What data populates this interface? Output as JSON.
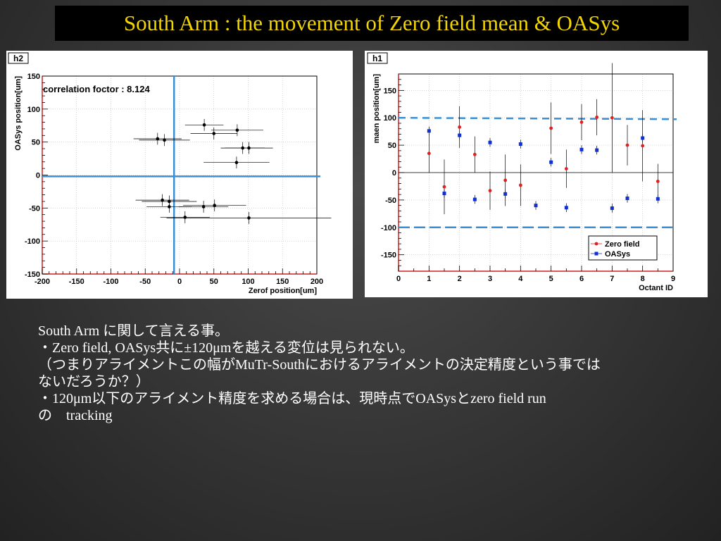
{
  "slide": {
    "title": "South Arm : the movement of Zero field mean & OASys",
    "text_lines": [
      "South Arm に関して言える事。",
      "・Zero field,  OASys共に±120μmを越える変位は見られない。",
      "（つまりアライメントこの幅がMuTr-Southにおけるアライメントの決定精度という事では",
      "ないだろうか？）",
      "・120μm以下のアライメント精度を求める場合は、現時点でOASysとzero field run",
      "の　tracking"
    ],
    "colors": {
      "title": "#f2d400",
      "title_bg": "#000000",
      "text": "#ffffff",
      "line_blue": "#3a8fd4",
      "red": "#e02020",
      "blue": "#1030d0"
    }
  },
  "chart_data": [
    {
      "type": "scatter",
      "name": "h2",
      "annotation": "correlation foctor : 8.124",
      "xlabel": "Zerof position[um]",
      "ylabel": "OASys position[um]",
      "xlim": [
        -200,
        200
      ],
      "ylim": [
        -150,
        150
      ],
      "xticks": [
        -200,
        -150,
        -100,
        -50,
        0,
        50,
        100,
        150,
        200
      ],
      "yticks": [
        -150,
        -100,
        -50,
        0,
        50,
        100,
        150
      ],
      "grid": true,
      "reference_lines": {
        "x": -8,
        "y": -2
      },
      "points": [
        {
          "x": -32,
          "y": 55,
          "xerr": 35,
          "yerr": 9
        },
        {
          "x": -22,
          "y": 53,
          "xerr": 37,
          "yerr": 9
        },
        {
          "x": 36,
          "y": 76,
          "xerr": 28,
          "yerr": 9
        },
        {
          "x": 50,
          "y": 63,
          "xerr": 34,
          "yerr": 9
        },
        {
          "x": 84,
          "y": 68,
          "xerr": 38,
          "yerr": 9
        },
        {
          "x": 92,
          "y": 41,
          "xerr": 32,
          "yerr": 9
        },
        {
          "x": 101,
          "y": 41,
          "xerr": 35,
          "yerr": 9
        },
        {
          "x": 83,
          "y": 19,
          "xerr": 48,
          "yerr": 9
        },
        {
          "x": -25,
          "y": -38,
          "xerr": 39,
          "yerr": 9
        },
        {
          "x": -15,
          "y": -40,
          "xerr": 40,
          "yerr": 9
        },
        {
          "x": -15,
          "y": -48,
          "xerr": 33,
          "yerr": 9
        },
        {
          "x": 35,
          "y": -48,
          "xerr": 36,
          "yerr": 9
        },
        {
          "x": 51,
          "y": -46,
          "xerr": 46,
          "yerr": 9
        },
        {
          "x": 8,
          "y": -64,
          "xerr": 36,
          "yerr": 9
        },
        {
          "x": 101,
          "y": -65,
          "xerr": 120,
          "yerr": 9
        }
      ]
    },
    {
      "type": "scatter",
      "name": "h1",
      "xlabel": "Octant ID",
      "ylabel": "maen position[um]",
      "xlim": [
        0,
        9
      ],
      "ylim": [
        -180,
        180
      ],
      "xticks": [
        0,
        1,
        2,
        3,
        4,
        5,
        6,
        7,
        8,
        9
      ],
      "yticks": [
        -150,
        -100,
        -50,
        0,
        50,
        100,
        150
      ],
      "grid": true,
      "legend": "bottom-right",
      "reference_lines": [
        100,
        -100
      ],
      "series": [
        {
          "name": "Zero field",
          "color": "#e02020",
          "marker": "circle",
          "points": [
            {
              "x": 1,
              "y": 35,
              "err": 35
            },
            {
              "x": 1.5,
              "y": -26,
              "err": 50
            },
            {
              "x": 2,
              "y": 83,
              "err": 38
            },
            {
              "x": 2.5,
              "y": 33,
              "err": 33
            },
            {
              "x": 3,
              "y": -33,
              "err": 35
            },
            {
              "x": 3.5,
              "y": -14,
              "err": 47
            },
            {
              "x": 4,
              "y": -23,
              "err": 38
            },
            {
              "x": 5,
              "y": 81,
              "err": 47
            },
            {
              "x": 5.5,
              "y": 7,
              "err": 35
            },
            {
              "x": 6,
              "y": 92,
              "err": 33
            },
            {
              "x": 6.5,
              "y": 101,
              "err": 33
            },
            {
              "x": 7,
              "y": 100,
              "err": 100
            },
            {
              "x": 7.5,
              "y": 50,
              "err": 37
            },
            {
              "x": 8,
              "y": 49,
              "err": 65
            },
            {
              "x": 8.5,
              "y": -16,
              "err": 32
            }
          ]
        },
        {
          "name": "OASys",
          "color": "#1030d0",
          "marker": "square",
          "points": [
            {
              "x": 1,
              "y": 76,
              "err": 8
            },
            {
              "x": 1.5,
              "y": -38,
              "err": 8
            },
            {
              "x": 2,
              "y": 68,
              "err": 8
            },
            {
              "x": 2.5,
              "y": -49,
              "err": 8
            },
            {
              "x": 3,
              "y": 55,
              "err": 8
            },
            {
              "x": 3.5,
              "y": -39,
              "err": 8
            },
            {
              "x": 4,
              "y": 52,
              "err": 8
            },
            {
              "x": 4.5,
              "y": -60,
              "err": 8
            },
            {
              "x": 5,
              "y": 19,
              "err": 8
            },
            {
              "x": 5.5,
              "y": -64,
              "err": 8
            },
            {
              "x": 6,
              "y": 42,
              "err": 8
            },
            {
              "x": 6.5,
              "y": 41,
              "err": 8
            },
            {
              "x": 7,
              "y": -65,
              "err": 8
            },
            {
              "x": 7.5,
              "y": -47,
              "err": 8
            },
            {
              "x": 8,
              "y": 63,
              "err": 8
            },
            {
              "x": 8.5,
              "y": -48,
              "err": 8
            }
          ]
        }
      ]
    }
  ]
}
